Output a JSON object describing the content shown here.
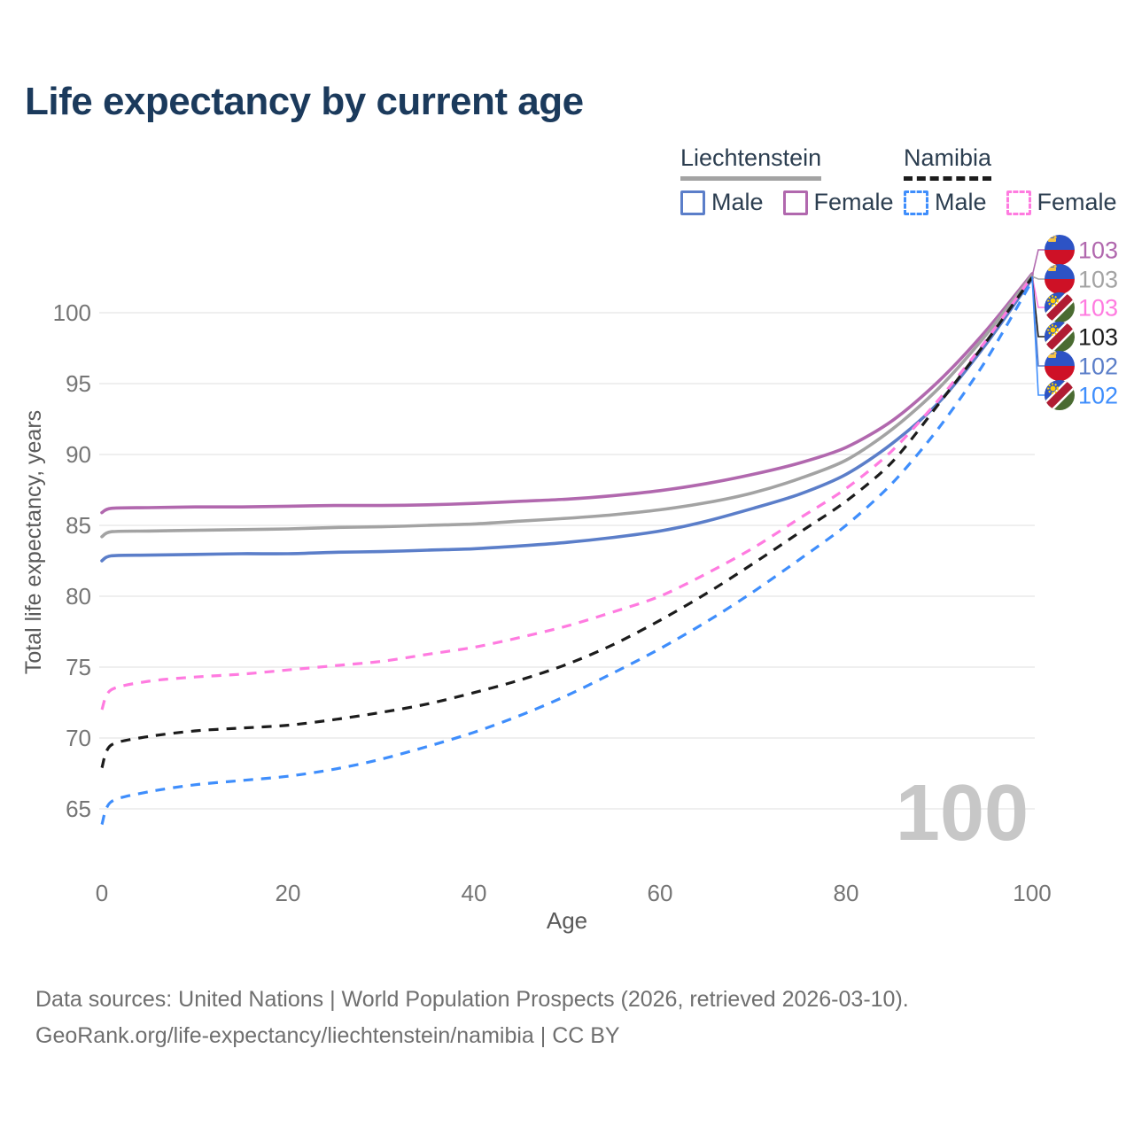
{
  "title": "Life expectancy by current age",
  "legend": {
    "groups": [
      {
        "label": "Liechtenstein",
        "style": "solid",
        "items": [
          {
            "label": "Male",
            "color": "#5b7ec9"
          },
          {
            "label": "Female",
            "color": "#b168ae"
          }
        ]
      },
      {
        "label": "Namibia",
        "style": "dashed",
        "items": [
          {
            "label": "Male",
            "color": "#3f8efc"
          },
          {
            "label": "Female",
            "color": "#ff7be0"
          }
        ]
      }
    ]
  },
  "footer": {
    "line1": "Data sources: United Nations | World Population Prospects (2026, retrieved 2026-03-10).",
    "line2": "GeoRank.org/life-expectancy/liechtenstein/namibia | CC BY"
  },
  "chart_data": {
    "type": "line",
    "title": "Life expectancy by current age",
    "xlabel": "Age",
    "ylabel": "Total life expectancy, years",
    "x_ticks": [
      0,
      20,
      40,
      60,
      80,
      100
    ],
    "y_ticks": [
      65,
      70,
      75,
      80,
      85,
      90,
      95,
      100
    ],
    "xlim": [
      0,
      100
    ],
    "ylim": [
      62,
      104
    ],
    "grid": "horizontal",
    "legend_position": "top-right",
    "watermark": "100",
    "ages": [
      0,
      1,
      5,
      10,
      15,
      20,
      25,
      30,
      35,
      40,
      45,
      50,
      55,
      60,
      65,
      70,
      75,
      80,
      85,
      90,
      95,
      100
    ],
    "series": [
      {
        "name": "Liechtenstein Female",
        "country": "Liechtenstein",
        "sex": "Female",
        "color": "#b168ae",
        "dash": "solid",
        "end_label": "103",
        "values": [
          85.9,
          86.2,
          86.25,
          86.3,
          86.3,
          86.35,
          86.4,
          86.4,
          86.45,
          86.55,
          86.7,
          86.85,
          87.1,
          87.45,
          87.95,
          88.6,
          89.4,
          90.5,
          92.4,
          95.2,
          98.7,
          102.75
        ]
      },
      {
        "name": "Liechtenstein",
        "country": "Liechtenstein",
        "sex": "Both",
        "color": "#a3a3a3",
        "dash": "solid",
        "end_label": "103",
        "values": [
          84.2,
          84.55,
          84.6,
          84.65,
          84.7,
          84.75,
          84.85,
          84.9,
          85.0,
          85.1,
          85.3,
          85.5,
          85.75,
          86.1,
          86.6,
          87.3,
          88.3,
          89.6,
          91.8,
          94.7,
          98.4,
          102.65
        ]
      },
      {
        "name": "Liechtenstein Male",
        "country": "Liechtenstein",
        "sex": "Male",
        "color": "#5b7ec9",
        "dash": "solid",
        "end_label": "102",
        "values": [
          82.5,
          82.85,
          82.9,
          82.95,
          83.0,
          83.0,
          83.1,
          83.15,
          83.25,
          83.35,
          83.55,
          83.8,
          84.15,
          84.6,
          85.3,
          86.2,
          87.2,
          88.6,
          90.8,
          93.7,
          97.75,
          102.4
        ]
      },
      {
        "name": "Namibia Female",
        "country": "Namibia",
        "sex": "Female",
        "color": "#ff7be0",
        "dash": "dashed",
        "end_label": "103",
        "values": [
          72.0,
          73.4,
          74.0,
          74.3,
          74.5,
          74.8,
          75.1,
          75.4,
          75.9,
          76.4,
          77.1,
          77.9,
          78.9,
          80.0,
          81.6,
          83.4,
          85.5,
          87.6,
          90.3,
          93.9,
          98.0,
          102.6
        ]
      },
      {
        "name": "Namibia",
        "country": "Namibia",
        "sex": "Both",
        "color": "#1c1c1c",
        "dash": "dashed",
        "end_label": "103",
        "values": [
          67.9,
          69.5,
          70.1,
          70.5,
          70.7,
          70.9,
          71.3,
          71.8,
          72.4,
          73.2,
          74.1,
          75.2,
          76.6,
          78.3,
          80.2,
          82.3,
          84.5,
          86.7,
          89.5,
          93.6,
          97.9,
          102.5
        ]
      },
      {
        "name": "Namibia Male",
        "country": "Namibia",
        "sex": "Male",
        "color": "#3f8efc",
        "dash": "dashed",
        "end_label": "102",
        "values": [
          63.9,
          65.5,
          66.2,
          66.7,
          67.0,
          67.3,
          67.8,
          68.5,
          69.4,
          70.4,
          71.6,
          73.0,
          74.6,
          76.3,
          78.2,
          80.3,
          82.6,
          85.0,
          88.0,
          91.9,
          96.6,
          102.25
        ]
      }
    ],
    "end_labels": [
      {
        "flag": "liechtenstein",
        "value": "103",
        "color": "#b168ae"
      },
      {
        "flag": "liechtenstein",
        "value": "103",
        "color": "#a3a3a3"
      },
      {
        "flag": "namibia",
        "value": "103",
        "color": "#ff7be0"
      },
      {
        "flag": "namibia",
        "value": "103",
        "color": "#1c1c1c"
      },
      {
        "flag": "liechtenstein",
        "value": "102",
        "color": "#5b7ec9"
      },
      {
        "flag": "namibia",
        "value": "102",
        "color": "#3f8efc"
      }
    ]
  }
}
